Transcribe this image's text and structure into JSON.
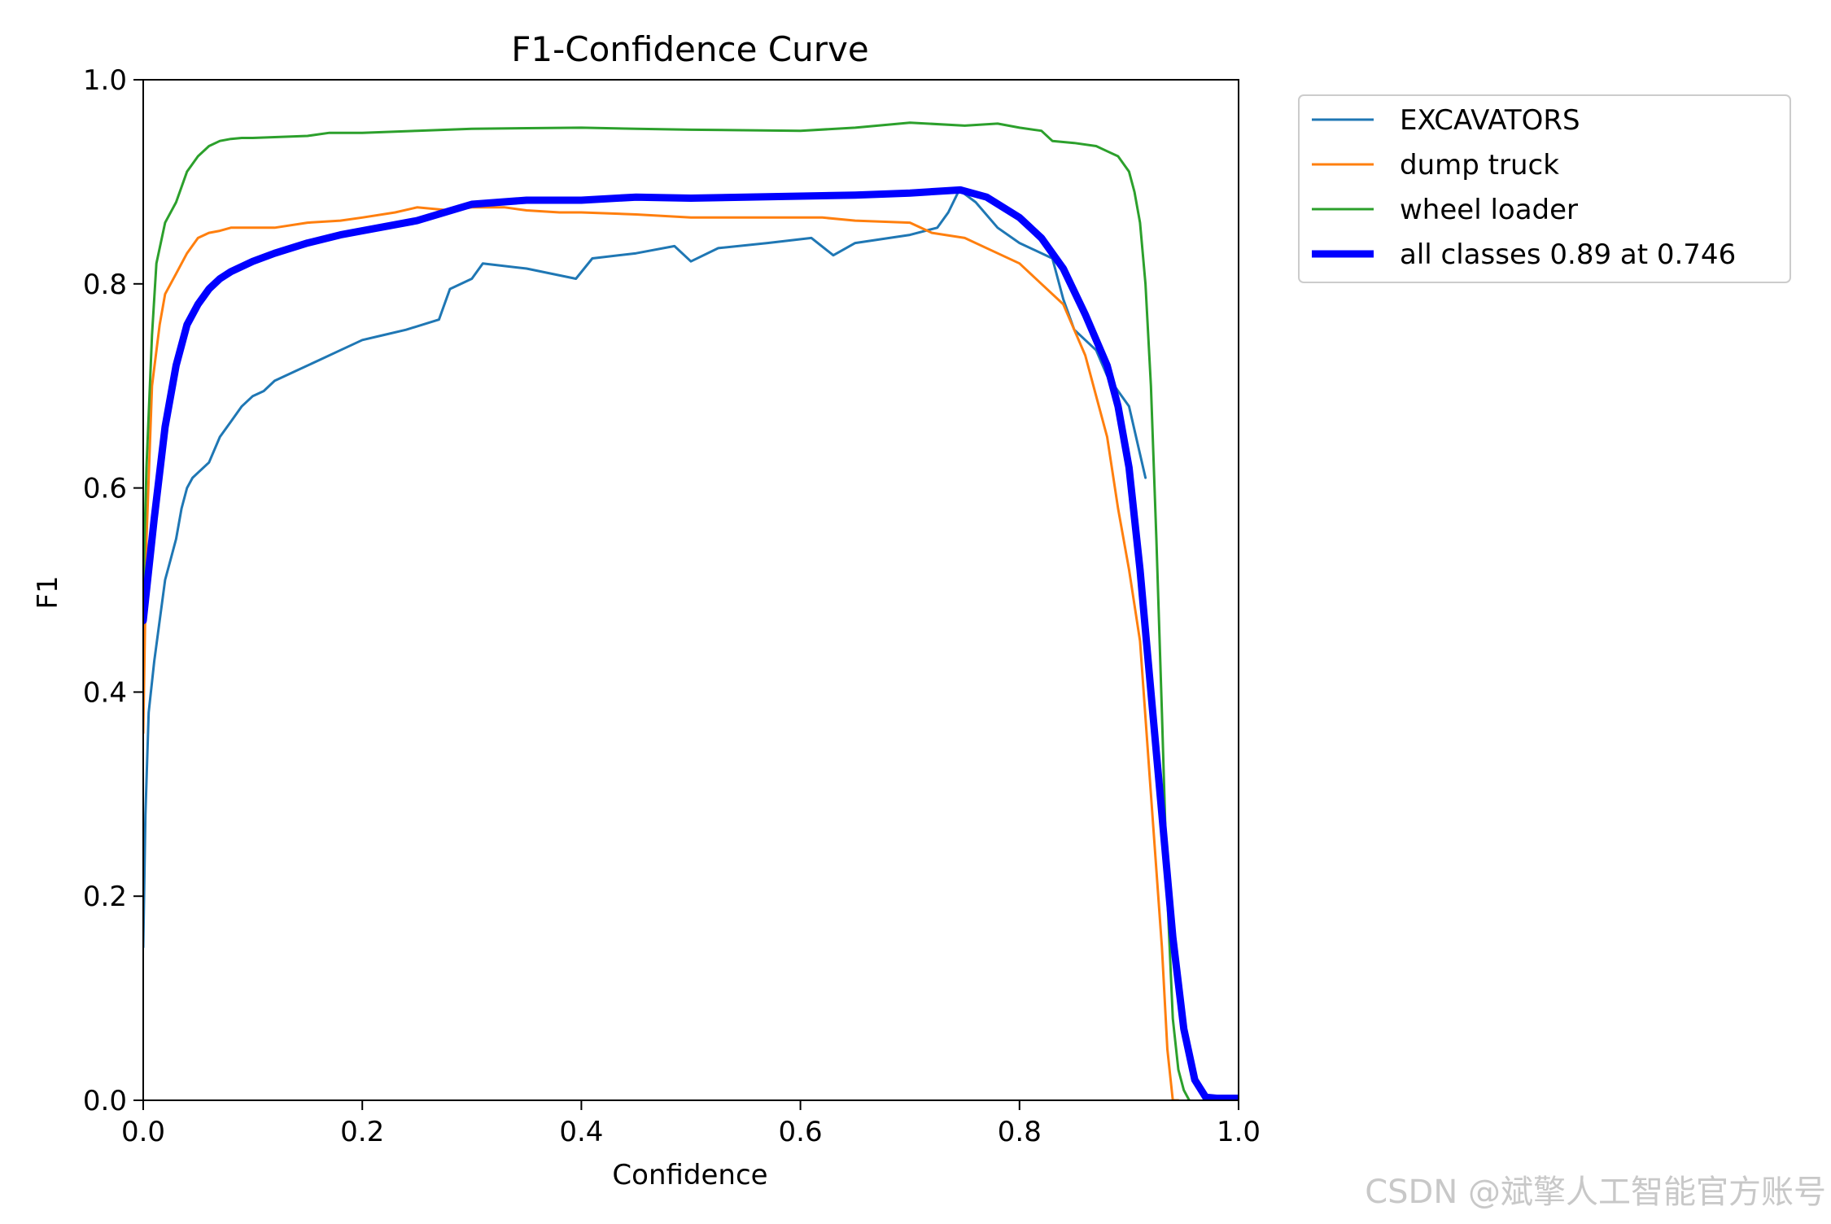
{
  "chart_data": {
    "type": "line",
    "title": "F1-Confidence Curve",
    "xlabel": "Confidence",
    "ylabel": "F1",
    "xlim": [
      0.0,
      1.0
    ],
    "ylim": [
      0.0,
      1.0
    ],
    "grid": false,
    "legend_position": "outside-top-right",
    "x_ticks": [
      "0.0",
      "0.2",
      "0.4",
      "0.6",
      "0.8",
      "1.0"
    ],
    "y_ticks": [
      "0.0",
      "0.2",
      "0.4",
      "0.6",
      "0.8",
      "1.0"
    ],
    "series": [
      {
        "name": "EXCAVATORS",
        "color": "#1f77b4",
        "line_role": "thin",
        "x": [
          0.0,
          0.002,
          0.005,
          0.01,
          0.015,
          0.02,
          0.025,
          0.03,
          0.035,
          0.04,
          0.045,
          0.05,
          0.06,
          0.07,
          0.08,
          0.09,
          0.1,
          0.11,
          0.12,
          0.14,
          0.16,
          0.18,
          0.2,
          0.22,
          0.24,
          0.27,
          0.28,
          0.3,
          0.31,
          0.35,
          0.395,
          0.41,
          0.45,
          0.485,
          0.5,
          0.525,
          0.57,
          0.61,
          0.63,
          0.65,
          0.7,
          0.725,
          0.735,
          0.745,
          0.76,
          0.78,
          0.8,
          0.83,
          0.84,
          0.85,
          0.87,
          0.88,
          0.9,
          0.915
        ],
        "y": [
          0.15,
          0.28,
          0.38,
          0.43,
          0.47,
          0.51,
          0.53,
          0.55,
          0.58,
          0.6,
          0.61,
          0.615,
          0.625,
          0.65,
          0.665,
          0.68,
          0.69,
          0.695,
          0.705,
          0.715,
          0.725,
          0.735,
          0.745,
          0.75,
          0.755,
          0.765,
          0.795,
          0.805,
          0.82,
          0.815,
          0.805,
          0.825,
          0.83,
          0.837,
          0.822,
          0.835,
          0.84,
          0.845,
          0.828,
          0.84,
          0.848,
          0.855,
          0.87,
          0.892,
          0.88,
          0.855,
          0.84,
          0.825,
          0.785,
          0.755,
          0.735,
          0.71,
          0.68,
          0.61
        ]
      },
      {
        "name": "dump truck",
        "color": "#ff7f0e",
        "line_role": "thin",
        "x": [
          0.0,
          0.003,
          0.008,
          0.015,
          0.02,
          0.03,
          0.04,
          0.05,
          0.06,
          0.07,
          0.08,
          0.1,
          0.12,
          0.15,
          0.18,
          0.2,
          0.23,
          0.25,
          0.28,
          0.3,
          0.33,
          0.35,
          0.38,
          0.4,
          0.45,
          0.5,
          0.55,
          0.6,
          0.62,
          0.65,
          0.7,
          0.72,
          0.75,
          0.78,
          0.8,
          0.82,
          0.84,
          0.86,
          0.87,
          0.88,
          0.89,
          0.9,
          0.91,
          0.92,
          0.93,
          0.935,
          0.94,
          0.945
        ],
        "y": [
          0.36,
          0.55,
          0.7,
          0.76,
          0.79,
          0.81,
          0.83,
          0.845,
          0.85,
          0.852,
          0.855,
          0.855,
          0.855,
          0.86,
          0.862,
          0.865,
          0.87,
          0.875,
          0.872,
          0.875,
          0.875,
          0.872,
          0.87,
          0.87,
          0.868,
          0.865,
          0.865,
          0.865,
          0.865,
          0.862,
          0.86,
          0.85,
          0.845,
          0.83,
          0.82,
          0.8,
          0.78,
          0.73,
          0.69,
          0.65,
          0.58,
          0.52,
          0.45,
          0.3,
          0.15,
          0.05,
          0.0,
          0.0
        ]
      },
      {
        "name": "wheel loader",
        "color": "#2ca02c",
        "line_role": "thin",
        "x": [
          0.0,
          0.003,
          0.008,
          0.012,
          0.02,
          0.03,
          0.04,
          0.05,
          0.06,
          0.07,
          0.08,
          0.09,
          0.1,
          0.15,
          0.17,
          0.2,
          0.25,
          0.3,
          0.4,
          0.45,
          0.5,
          0.6,
          0.65,
          0.7,
          0.75,
          0.78,
          0.8,
          0.82,
          0.83,
          0.85,
          0.87,
          0.88,
          0.89,
          0.9,
          0.905,
          0.91,
          0.915,
          0.92,
          0.925,
          0.93,
          0.935,
          0.94,
          0.945,
          0.95,
          0.955
        ],
        "y": [
          0.5,
          0.62,
          0.75,
          0.82,
          0.86,
          0.88,
          0.91,
          0.925,
          0.935,
          0.94,
          0.942,
          0.943,
          0.943,
          0.945,
          0.948,
          0.948,
          0.95,
          0.952,
          0.953,
          0.952,
          0.951,
          0.95,
          0.953,
          0.958,
          0.955,
          0.957,
          0.953,
          0.95,
          0.94,
          0.938,
          0.935,
          0.93,
          0.925,
          0.91,
          0.89,
          0.86,
          0.8,
          0.7,
          0.55,
          0.38,
          0.2,
          0.08,
          0.03,
          0.01,
          0.0
        ]
      },
      {
        "name": "all classes 0.89 at 0.746",
        "color": "#0000ff",
        "line_role": "thick",
        "x": [
          0.0,
          0.01,
          0.02,
          0.03,
          0.04,
          0.05,
          0.06,
          0.07,
          0.08,
          0.1,
          0.12,
          0.15,
          0.18,
          0.2,
          0.25,
          0.3,
          0.35,
          0.4,
          0.45,
          0.5,
          0.55,
          0.6,
          0.65,
          0.7,
          0.746,
          0.77,
          0.8,
          0.82,
          0.84,
          0.86,
          0.88,
          0.89,
          0.9,
          0.91,
          0.92,
          0.93,
          0.94,
          0.95,
          0.96,
          0.97,
          0.98,
          1.0
        ],
        "y": [
          0.47,
          0.57,
          0.66,
          0.72,
          0.76,
          0.78,
          0.795,
          0.805,
          0.812,
          0.822,
          0.83,
          0.84,
          0.848,
          0.852,
          0.862,
          0.878,
          0.882,
          0.882,
          0.885,
          0.884,
          0.885,
          0.886,
          0.887,
          0.889,
          0.892,
          0.885,
          0.865,
          0.845,
          0.815,
          0.77,
          0.72,
          0.68,
          0.62,
          0.52,
          0.4,
          0.28,
          0.16,
          0.07,
          0.02,
          0.003,
          0.002,
          0.002
        ]
      }
    ]
  },
  "watermark": "CSDN @斌擎人工智能官方账号"
}
